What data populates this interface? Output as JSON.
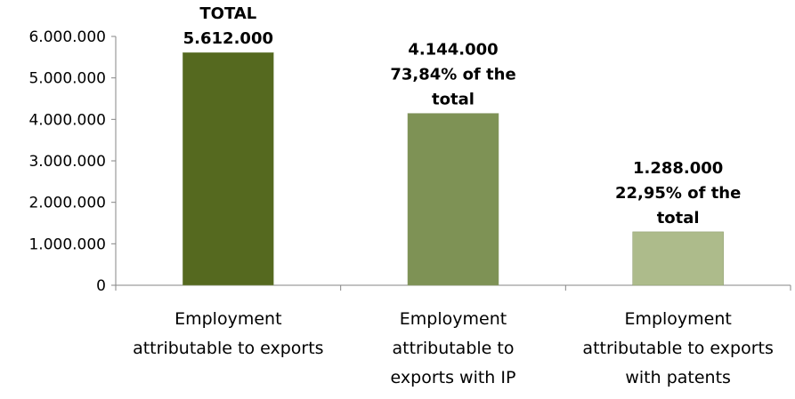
{
  "chart_data": {
    "type": "bar",
    "categories": [
      [
        "Employment",
        "attributable to exports"
      ],
      [
        "Employment",
        "attributable to",
        "exports with IP"
      ],
      [
        "Employment",
        "attributable to exports",
        "with patents"
      ]
    ],
    "values": [
      5612000,
      4144000,
      1288000
    ],
    "colors": [
      "#55691f",
      "#7e9255",
      "#adbb8b"
    ],
    "data_labels": [
      [
        "TOTAL",
        "5.612.000"
      ],
      [
        "4.144.000",
        "73,84% of the",
        "total"
      ],
      [
        "1.288.000",
        "22,95% of the",
        "total"
      ]
    ],
    "yticks": [
      "0",
      "1.000.000",
      "2.000.000",
      "3.000.000",
      "4.000.000",
      "5.000.000",
      "6.000.000"
    ],
    "ylim": [
      0,
      6000000
    ],
    "grid": false,
    "legend": "none",
    "title": "",
    "xlabel": "",
    "ylabel": ""
  }
}
